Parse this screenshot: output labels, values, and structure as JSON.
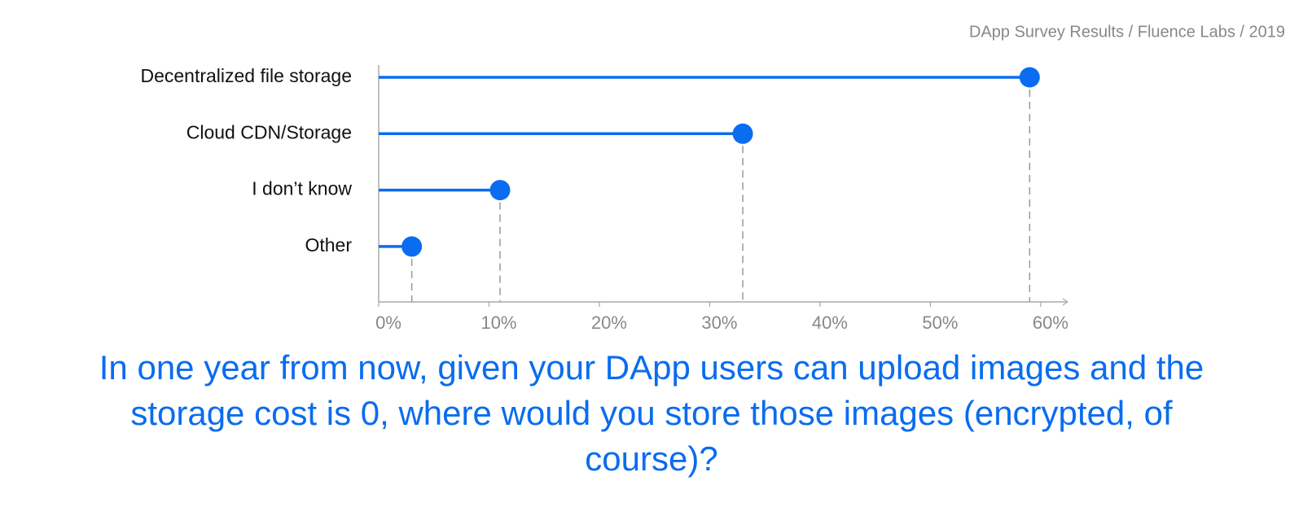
{
  "chart_data": {
    "type": "lollipop",
    "source": "DApp Survey Results / Fluence Labs / 2019",
    "title": "In one year from now, given your DApp users can upload images and the storage cost is 0, where would you store those images (encrypted, of course)?",
    "categories": [
      "Decentralized file storage",
      "Cloud CDN/Storage",
      "I don’t know",
      "Other"
    ],
    "values": [
      59,
      33,
      11,
      3
    ],
    "color": "#0a6cf0",
    "xlim": [
      0,
      62
    ],
    "xticks": [
      {
        "value": 0,
        "label": "0%"
      },
      {
        "value": 10,
        "label": "10%"
      },
      {
        "value": 20,
        "label": "20%"
      },
      {
        "value": 30,
        "label": "30%"
      },
      {
        "value": 40,
        "label": "40%"
      },
      {
        "value": 50,
        "label": "50%"
      },
      {
        "value": 60,
        "label": "60%"
      }
    ]
  }
}
